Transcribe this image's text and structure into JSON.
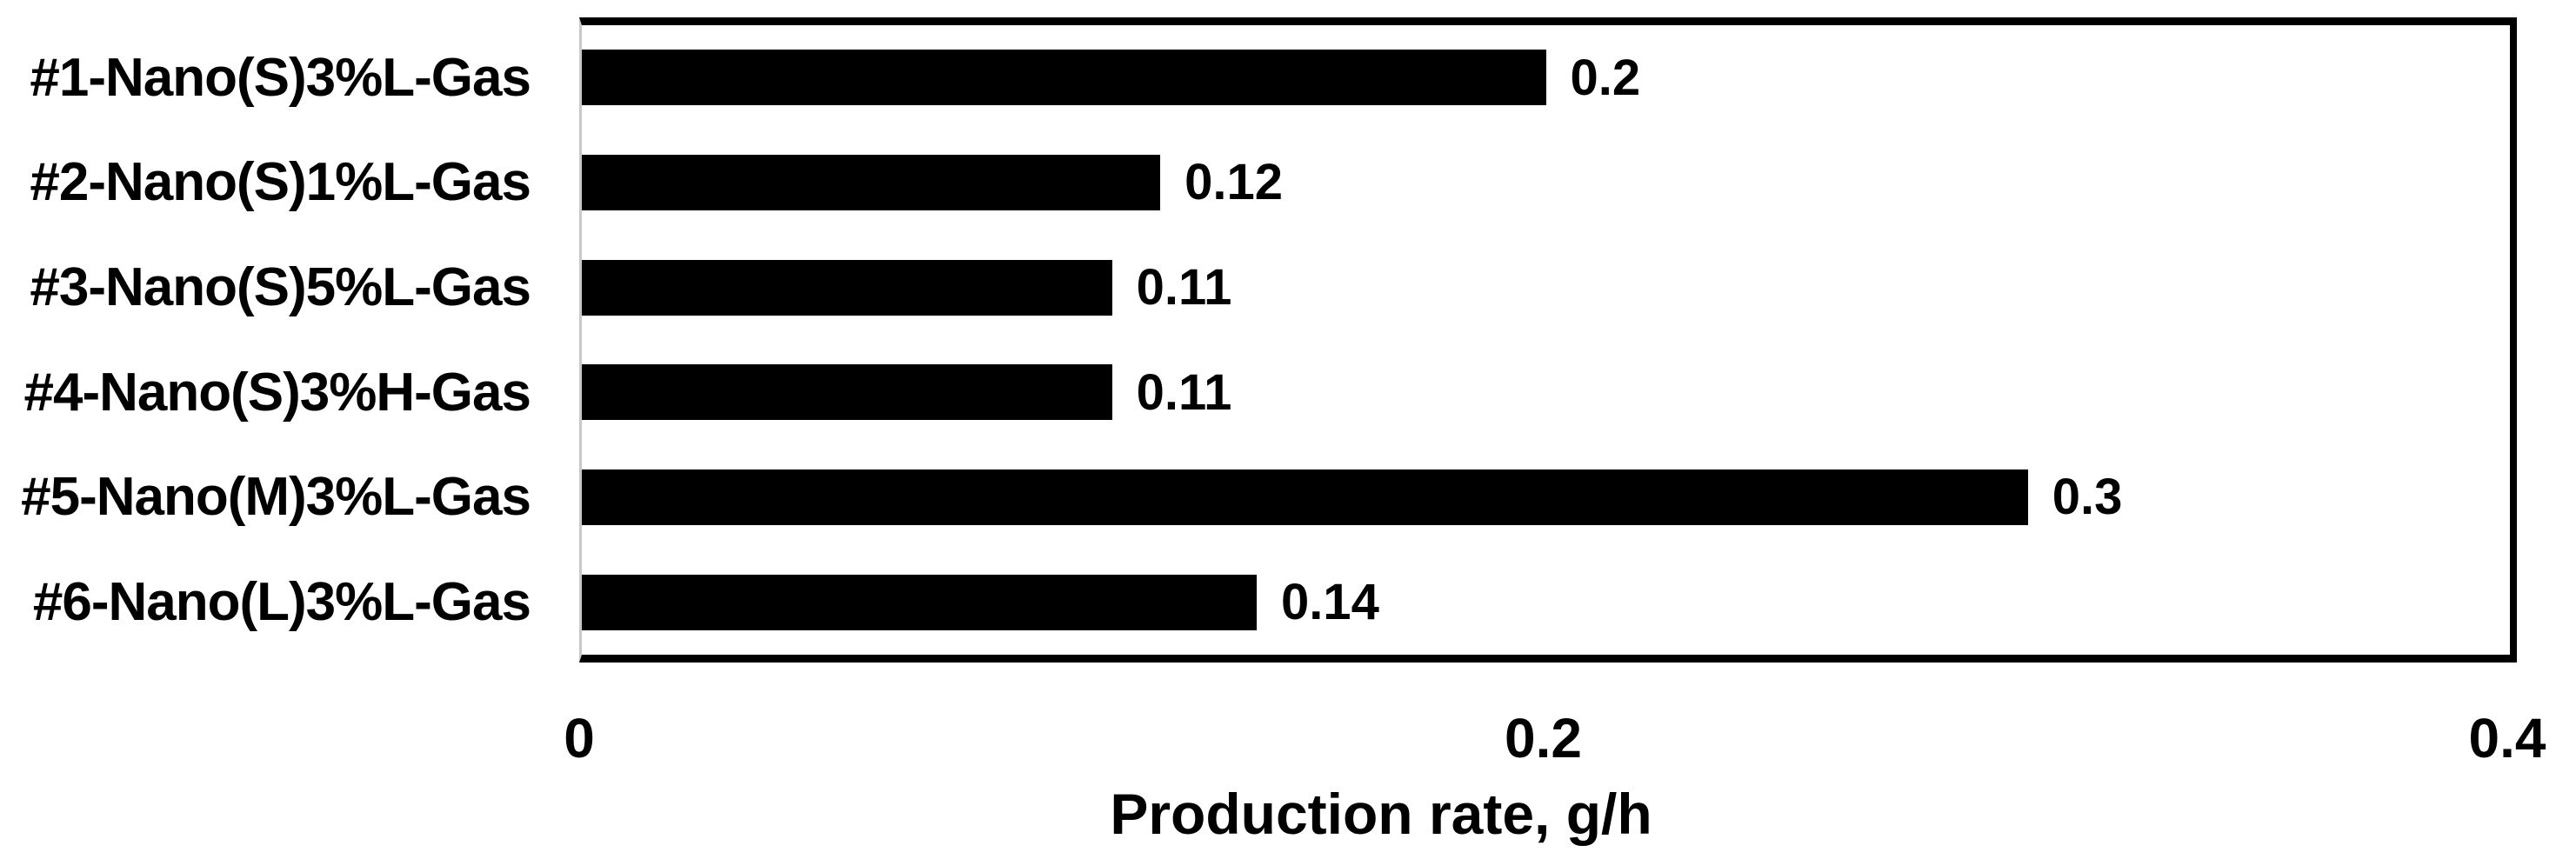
{
  "chart_data": {
    "type": "bar",
    "orientation": "horizontal",
    "categories": [
      "#1-Nano(S)3%L-Gas",
      "#2-Nano(S)1%L-Gas",
      "#3-Nano(S)5%L-Gas",
      "#4-Nano(S)3%H-Gas",
      "#5-Nano(M)3%L-Gas",
      "#6-Nano(L)3%L-Gas"
    ],
    "values": [
      0.2,
      0.12,
      0.11,
      0.11,
      0.3,
      0.14
    ],
    "data_labels": [
      "0.2",
      "0.12",
      "0.11",
      "0.11",
      "0.3",
      "0.14"
    ],
    "title": "",
    "xlabel": "Production rate, g/h",
    "ylabel": "",
    "xlim": [
      0,
      0.4
    ],
    "xticks": [
      0,
      0.2,
      0.4
    ],
    "xtick_labels": [
      "0",
      "0.2",
      "0.4"
    ],
    "grid": false,
    "legend": false,
    "bar_color": "#000000",
    "text_color": "#000000",
    "plot_border_color": "#000000",
    "category_axis_line_color": "#c9c9c9",
    "background_color": "#ffffff"
  }
}
